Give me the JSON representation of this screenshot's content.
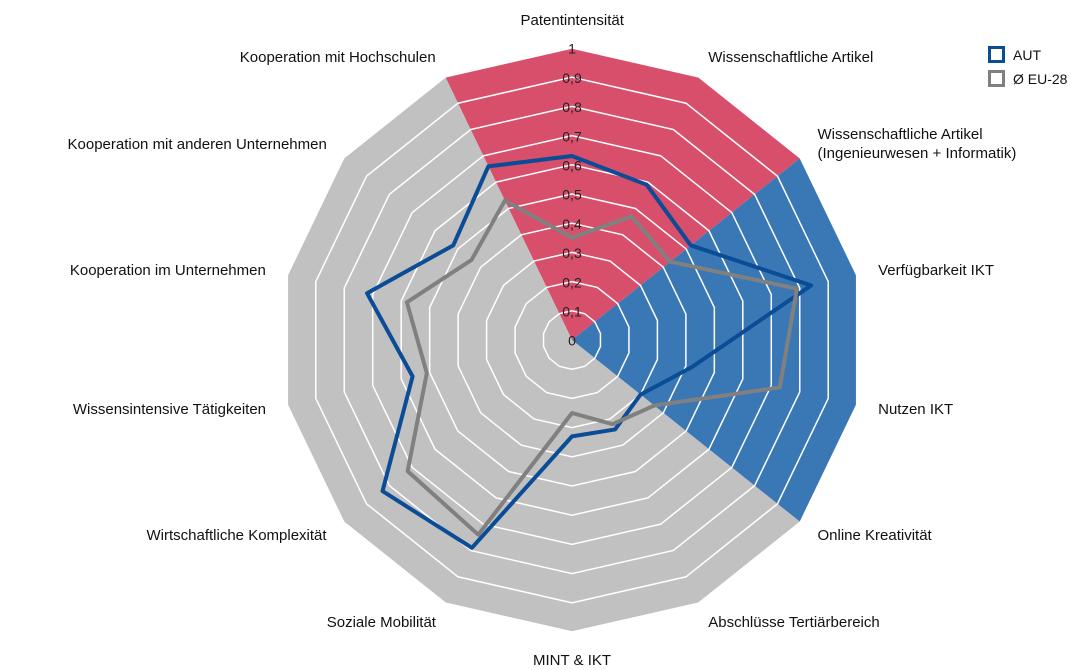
{
  "chart_data": {
    "type": "radar",
    "categories": [
      "Patentintensität",
      "Wissenschaftliche Artikel",
      "Wissenschaftliche Artikel\n(Ingenieurwesen + Informatik)",
      "Verfügbarkeit IKT",
      "Nutzen IKT",
      "Online Kreativität",
      "Abschlüsse Tertiärbereich",
      "MINT & IKT",
      "Soziale Mobilität",
      "Wirtschaftliche Komplexität",
      "Wissensintensive Tätigkeiten",
      "Kooperation im Unternehmen",
      "Kooperation mit anderen Unternehmen",
      "Kooperation mit Hochschulen"
    ],
    "series": [
      {
        "name": "AUT",
        "color": "#0b4c96",
        "values": [
          0.63,
          0.59,
          0.52,
          0.84,
          0.42,
          0.3,
          0.34,
          0.33,
          0.79,
          0.83,
          0.56,
          0.72,
          0.52,
          0.66
        ]
      },
      {
        "name": "Ø EU-28",
        "color": "#808080",
        "values": [
          0.35,
          0.47,
          0.43,
          0.79,
          0.73,
          0.36,
          0.32,
          0.25,
          0.74,
          0.72,
          0.51,
          0.58,
          0.44,
          0.53
        ]
      }
    ],
    "ylim": [
      0,
      1
    ],
    "yticks": [
      0,
      {
        "value": 0.1,
        "label": "0,1"
      },
      {
        "value": 0.2,
        "label": "0,2"
      },
      {
        "value": 0.3,
        "label": "0,3"
      },
      {
        "value": 0.4,
        "label": "0,4"
      },
      {
        "value": 0.5,
        "label": "0,5"
      },
      {
        "value": 0.6,
        "label": "0,6"
      },
      {
        "value": 0.7,
        "label": "0,7"
      },
      {
        "value": 0.8,
        "label": "0,8"
      },
      {
        "value": 0.9,
        "label": "0,9"
      },
      1
    ],
    "legend": "top-right"
  }
}
